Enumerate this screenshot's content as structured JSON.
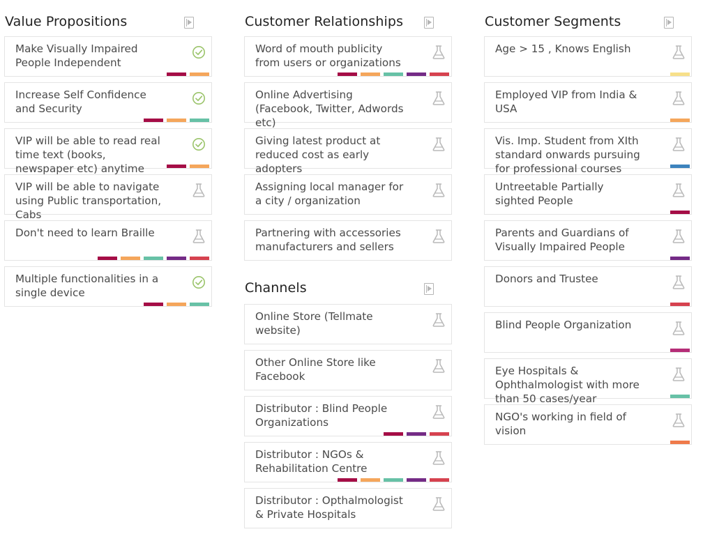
{
  "colors": {
    "crimson": "#a50d46",
    "orange": "#f5a65b",
    "teal": "#67c1a6",
    "purple": "#742b86",
    "red": "#d6424f",
    "yellow": "#f7e08a",
    "blue": "#3d83bd",
    "magenta": "#b52d77",
    "coral": "#ef7a4a",
    "check": "#9bc46b",
    "flask": "#b8b8b8"
  },
  "value_propositions": {
    "title": "Value Propositions",
    "header_icon": "video-file-icon",
    "cards": [
      {
        "text": "Make Visually Impaired People Independent",
        "icon": "check-circle-icon",
        "tags": [
          "crimson",
          "orange"
        ]
      },
      {
        "text": "Increase Self Confidence and Security",
        "icon": "check-circle-icon",
        "tags": [
          "crimson",
          "orange",
          "teal"
        ]
      },
      {
        "text": "VIP will be able to read real time text (books, newspaper etc) anytime",
        "icon": "check-circle-icon",
        "tags": [
          "crimson",
          "orange"
        ]
      },
      {
        "text": "VIP will be able to navigate using Public transportation, Cabs",
        "icon": "flask-icon",
        "tags": []
      },
      {
        "text": "Don't need to learn Braille",
        "icon": "flask-icon",
        "tags": [
          "crimson",
          "orange",
          "teal",
          "purple",
          "red"
        ]
      },
      {
        "text": "Multiple functionalities in a single device",
        "icon": "check-circle-icon",
        "tags": [
          "crimson",
          "orange",
          "teal"
        ]
      }
    ]
  },
  "customer_relationships": {
    "title": "Customer Relationships",
    "header_icon": "video-file-icon",
    "cards": [
      {
        "text": "Word of mouth publicity from users or organizations",
        "icon": "flask-icon",
        "tags": [
          "crimson",
          "orange",
          "teal",
          "purple",
          "red"
        ]
      },
      {
        "text": "Online Advertising (Facebook, Twitter, Adwords etc)",
        "icon": "flask-icon",
        "tags": []
      },
      {
        "text": "Giving latest product at reduced cost as early adopters",
        "icon": "flask-icon",
        "tags": []
      },
      {
        "text": "Assigning local manager for a city / organization",
        "icon": "flask-icon",
        "tags": []
      },
      {
        "text": "Partnering with accessories manufacturers and sellers",
        "icon": "flask-icon",
        "tags": []
      }
    ]
  },
  "channels": {
    "title": "Channels",
    "header_icon": "video-file-icon",
    "cards": [
      {
        "text": "Online Store (Tellmate website)",
        "icon": "flask-icon",
        "tags": []
      },
      {
        "text": "Other Online Store like Facebook",
        "icon": "flask-icon",
        "tags": []
      },
      {
        "text": "Distributor : Blind People Organizations",
        "icon": "flask-icon",
        "tags": [
          "crimson",
          "purple",
          "red"
        ]
      },
      {
        "text": "Distributor : NGOs & Rehabilitation Centre",
        "icon": "flask-icon",
        "tags": [
          "crimson",
          "orange",
          "teal",
          "purple",
          "red"
        ]
      },
      {
        "text": "Distributor : Opthalmologist & Private Hospitals",
        "icon": "flask-icon",
        "tags": []
      }
    ]
  },
  "customer_segments": {
    "title": "Customer Segments",
    "header_icon": "video-file-icon",
    "cards": [
      {
        "text": "Age > 15 , Knows English",
        "icon": "flask-icon",
        "tags": [
          "yellow"
        ]
      },
      {
        "text": "Employed VIP from India & USA",
        "icon": "flask-icon",
        "tags": [
          "orange"
        ]
      },
      {
        "text": "Vis. Imp. Student from XIth standard onwards pursuing for professional courses",
        "icon": "flask-icon",
        "tags": [
          "blue"
        ]
      },
      {
        "text": "Untreetable Partially sighted People",
        "icon": "flask-icon",
        "tags": [
          "crimson"
        ]
      },
      {
        "text": "Parents and Guardians of Visually Impaired People",
        "icon": "flask-icon",
        "tags": [
          "purple"
        ]
      },
      {
        "text": "Donors and Trustee",
        "icon": "flask-icon",
        "tags": [
          "red"
        ]
      },
      {
        "text": "Blind People Organization",
        "icon": "flask-icon",
        "tags": [
          "magenta"
        ]
      },
      {
        "text": "Eye Hospitals & Ophthalmologist with more than 50 cases/year",
        "icon": "flask-icon",
        "tags": [
          "teal"
        ]
      },
      {
        "text": "NGO's working in field of vision",
        "icon": "flask-icon",
        "tags": [
          "coral"
        ]
      }
    ]
  }
}
